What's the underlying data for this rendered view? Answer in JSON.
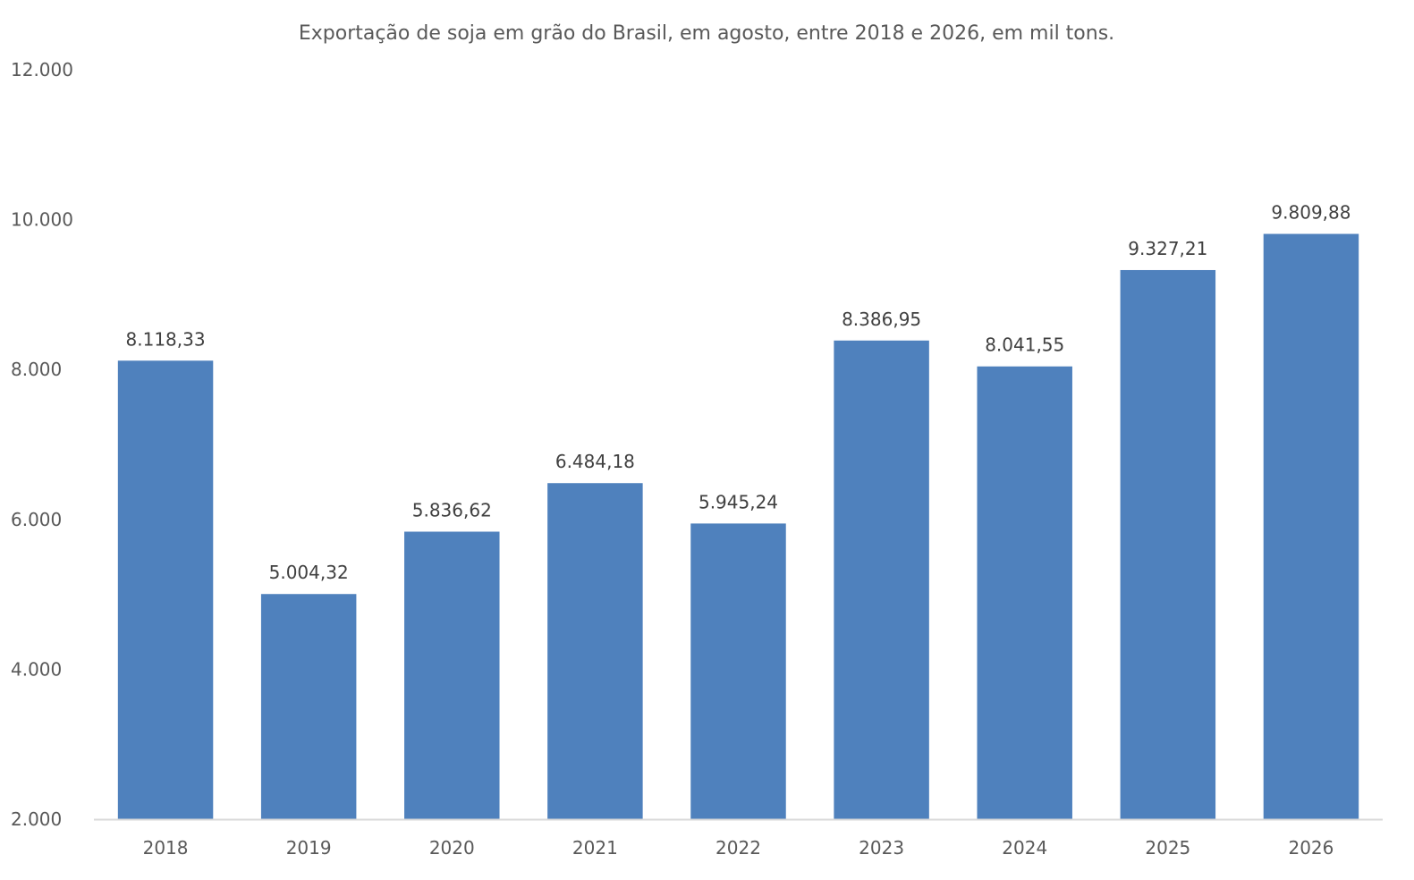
{
  "chart_data": {
    "type": "bar",
    "title": "Exportação de soja em grão do Brasil, em agosto, entre 2018 e 2026, em mil tons.",
    "categories": [
      "2018",
      "2019",
      "2020",
      "2021",
      "2022",
      "2023",
      "2024",
      "2025",
      "2026"
    ],
    "values": [
      8118.33,
      5004.32,
      5836.62,
      6484.18,
      5945.24,
      8386.95,
      8041.55,
      9327.21,
      9809.88
    ],
    "data_labels": [
      "8.118,33",
      "5.004,32",
      "5.836,62",
      "6.484,18",
      "5.945,24",
      "8.386,95",
      "8.041,55",
      "9.327,21",
      "9.809,88"
    ],
    "ylim": [
      2000,
      12000
    ],
    "y_ticks": [
      {
        "value": 2000,
        "label": "2.000"
      },
      {
        "value": 4000,
        "label": "4.000"
      },
      {
        "value": 6000,
        "label": "6.000"
      },
      {
        "value": 8000,
        "label": "8.000"
      },
      {
        "value": 10000,
        "label": "10.000"
      },
      {
        "value": 12000,
        "label": "12.000"
      }
    ],
    "grid": false,
    "legend": "none",
    "bar_color": "#4f81bd",
    "axis_color": "#d9d9d9"
  }
}
